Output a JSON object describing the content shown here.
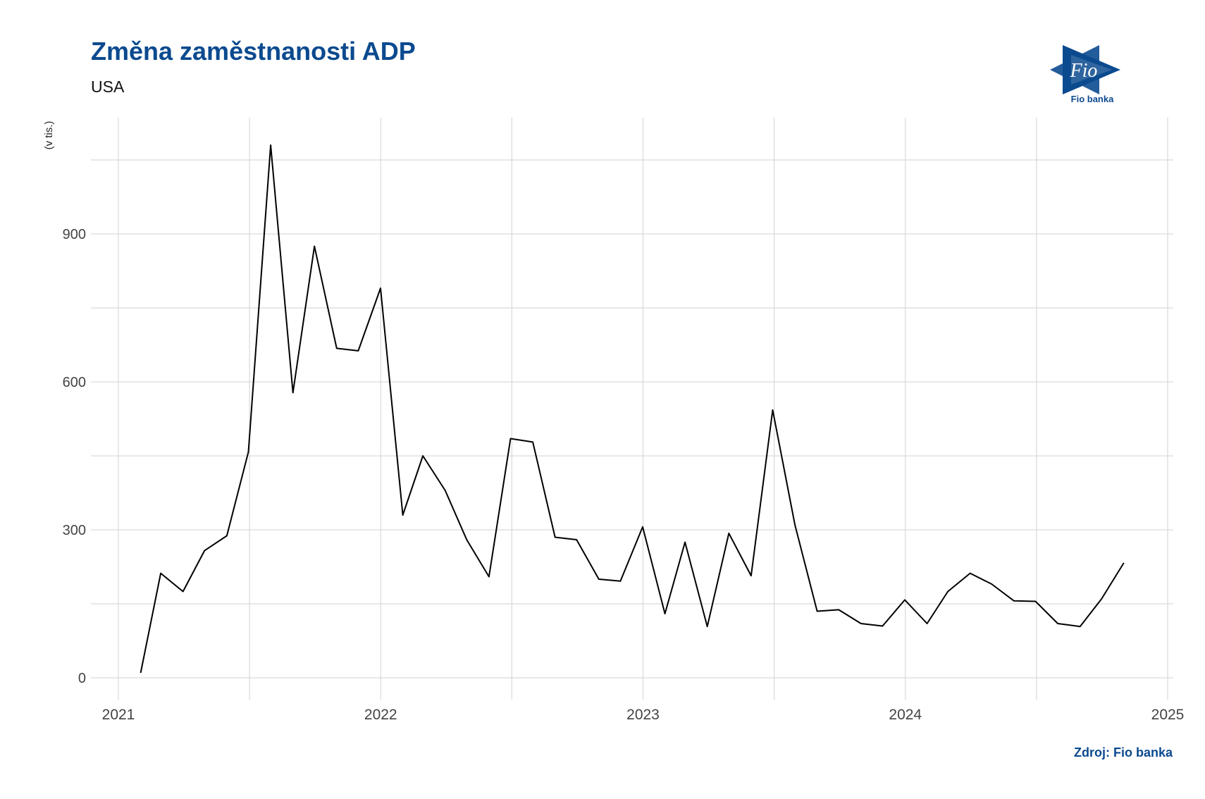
{
  "header": {
    "title": "Změna zaměstnanosti ADP",
    "subtitle": "USA"
  },
  "logo": {
    "icon": "fio-flag-logo-icon",
    "wordmark": "Fio",
    "caption": "Fio banka"
  },
  "footer": {
    "source": "Zdroj: Fio banka"
  },
  "colors": {
    "brand": "#0b4a8f",
    "line": "#000000",
    "grid": "#d9d9d9",
    "text": "#444444"
  },
  "chart_data": {
    "type": "line",
    "title": "Změna zaměstnanosti ADP",
    "subtitle": "USA",
    "ylabel": "(v tis.)",
    "xlabel": "",
    "x_ticks": [
      "2021",
      "2022",
      "2023",
      "2024",
      "2025"
    ],
    "y_ticks": [
      0,
      300,
      600,
      900
    ],
    "xlim": [
      "2021-01-01",
      "2025-01-01"
    ],
    "ylim": [
      -90,
      1140
    ],
    "grid": true,
    "legend": "none",
    "series": [
      {
        "x": [
          "2021-02-01",
          "2021-03-01",
          "2021-04-01",
          "2021-05-01",
          "2021-06-01",
          "2021-07-01",
          "2021-08-01",
          "2021-09-01",
          "2021-10-01",
          "2021-11-01",
          "2021-12-01",
          "2022-01-01",
          "2022-02-01",
          "2022-03-01",
          "2022-04-01",
          "2022-05-01",
          "2022-06-01",
          "2022-07-01",
          "2022-08-01",
          "2022-09-01",
          "2022-10-01",
          "2022-11-01",
          "2022-12-01",
          "2023-01-01",
          "2023-02-01",
          "2023-03-01",
          "2023-04-01",
          "2023-05-01",
          "2023-06-01",
          "2023-07-01",
          "2023-08-01",
          "2023-09-01",
          "2023-10-01",
          "2023-11-01",
          "2023-12-01",
          "2024-01-01",
          "2024-02-01",
          "2024-03-01",
          "2024-04-01",
          "2024-05-01",
          "2024-06-01",
          "2024-07-01",
          "2024-08-01",
          "2024-09-01",
          "2024-10-01",
          "2024-11-01"
        ],
        "values": [
          10,
          212,
          175,
          258,
          288,
          458,
          1080,
          578,
          875,
          668,
          663,
          790,
          330,
          450,
          380,
          280,
          205,
          485,
          478,
          285,
          280,
          200,
          196,
          306,
          130,
          275,
          104,
          293,
          207,
          543,
          310,
          135,
          138,
          110,
          105,
          158,
          110,
          175,
          212,
          190,
          156,
          155,
          110,
          104,
          160,
          233
        ]
      }
    ]
  }
}
